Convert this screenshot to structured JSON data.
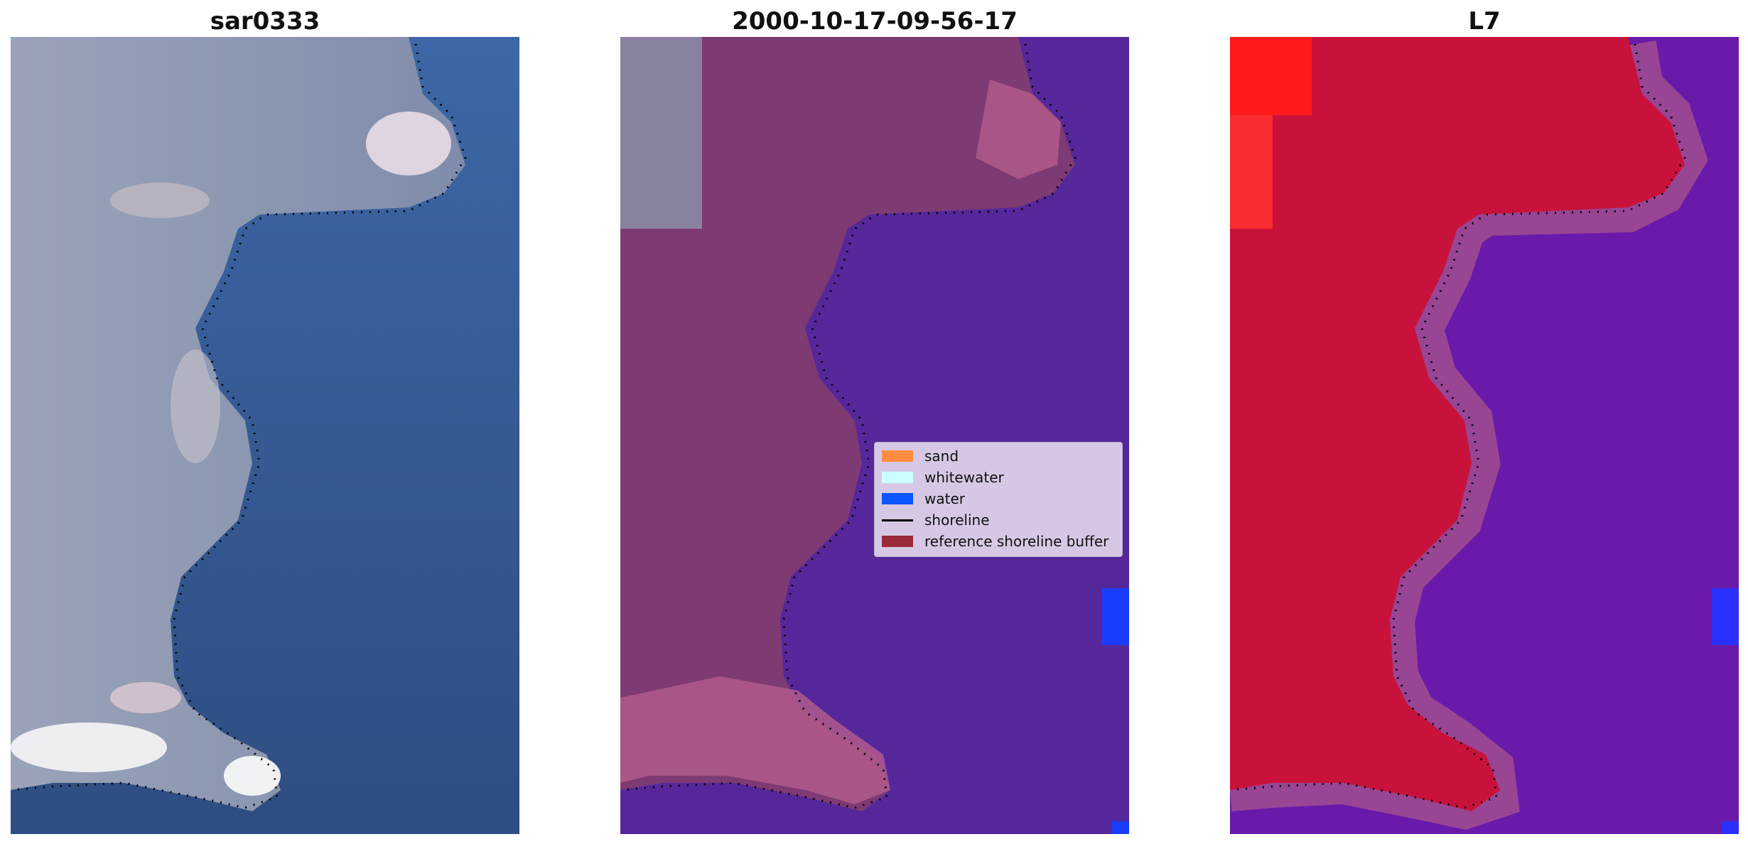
{
  "panels": [
    {
      "title": "sar0333"
    },
    {
      "title": "2000-10-17-09-56-17"
    },
    {
      "title": "L7"
    }
  ],
  "legend": {
    "items": [
      {
        "label": "sand",
        "color": "#ff8c40",
        "kind": "patch"
      },
      {
        "label": "whitewater",
        "color": "#ccffff",
        "kind": "patch"
      },
      {
        "label": "water",
        "color": "#0b55ff",
        "kind": "patch"
      },
      {
        "label": "shoreline",
        "color": "#000000",
        "kind": "line"
      },
      {
        "label": "reference shoreline buffer",
        "color": "#9a2a3a",
        "kind": "patch"
      }
    ]
  },
  "colors": {
    "ocean_rgb": "#3a5f96",
    "land_rgb": "#8e97ad",
    "surf": "#f0eef2",
    "overlay_water": "#55279b",
    "overlay_land": "#7e3a72",
    "overlay_sand_edge": "#b05a8c",
    "index_land": "#c8123c",
    "index_water": "#6a1aaa"
  }
}
